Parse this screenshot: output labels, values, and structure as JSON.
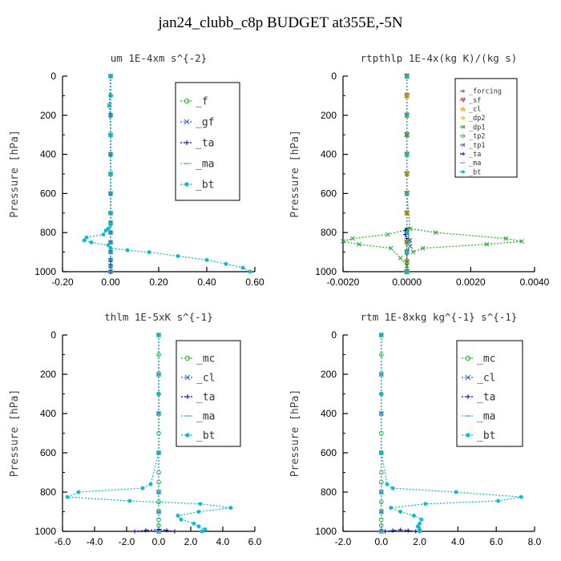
{
  "figure": {
    "title": "jan24_clubb_c8p  BUDGET at355E,-5N"
  },
  "chart_data": [
    {
      "type": "line",
      "title": "um   1E-4xm s^{-2}",
      "ylabel": "Pressure [hPa]",
      "xlim": [
        -0.2,
        0.6
      ],
      "ylim": [
        1000,
        0
      ],
      "xticks": [
        "-0.20",
        "0.00",
        "0.20",
        "0.40",
        "0.60"
      ],
      "yticks": [
        "0",
        "200",
        "400",
        "600",
        "800",
        "1000"
      ],
      "legend_position": "top-right",
      "series": [
        {
          "name": "_f",
          "color": "#22bb22",
          "marker": "circle",
          "x": [
            0,
            0,
            0,
            0,
            0,
            0,
            0,
            0,
            0,
            0,
            0,
            0,
            0,
            0,
            0
          ],
          "y": [
            0,
            100,
            200,
            300,
            400,
            500,
            600,
            700,
            750,
            800,
            850,
            900,
            940,
            970,
            1000
          ]
        },
        {
          "name": "_gf",
          "color": "#2266cc",
          "marker": "cross",
          "x": [
            0,
            -0.005,
            0,
            0,
            0,
            0,
            0,
            0,
            0,
            0,
            0,
            0,
            0,
            0,
            0
          ],
          "y": [
            0,
            150,
            200,
            300,
            400,
            500,
            600,
            700,
            750,
            800,
            850,
            900,
            940,
            970,
            1000
          ]
        },
        {
          "name": "_ta",
          "color": "#0000cc",
          "marker": "plus",
          "x": [
            0,
            0,
            0,
            0,
            0,
            0,
            0,
            0,
            0,
            0,
            0,
            0,
            0,
            0,
            0
          ],
          "y": [
            0,
            100,
            200,
            300,
            400,
            500,
            600,
            700,
            750,
            800,
            850,
            900,
            940,
            970,
            1000
          ]
        },
        {
          "name": "_ma",
          "color": "#44aadd",
          "marker": "dash",
          "x": [
            0,
            0,
            0,
            0,
            0,
            0,
            0,
            0,
            0,
            0,
            0,
            0,
            0,
            0,
            0
          ],
          "y": [
            0,
            100,
            200,
            300,
            400,
            500,
            600,
            700,
            750,
            800,
            850,
            900,
            940,
            970,
            1000
          ]
        },
        {
          "name": "_bt",
          "color": "#00bbcc",
          "marker": "star",
          "x": [
            0,
            0,
            -0.005,
            0,
            0,
            0,
            0,
            -0.01,
            -0.02,
            -0.03,
            -0.1,
            -0.11,
            -0.08,
            -0.01,
            0,
            0.07,
            0.16,
            0.28,
            0.4,
            0.48,
            0.55,
            0.58
          ],
          "y": [
            0,
            100,
            150,
            300,
            500,
            700,
            760,
            780,
            790,
            810,
            825,
            840,
            850,
            865,
            880,
            890,
            900,
            920,
            940,
            960,
            980,
            1000
          ]
        }
      ]
    },
    {
      "type": "line",
      "title": "rtpthlp   1E-4x(kg K)/(kg s)",
      "ylabel": "Pressure [hPa]",
      "xlim": [
        -0.002,
        0.004
      ],
      "ylim": [
        1000,
        0
      ],
      "xticks": [
        "-0.0020",
        "0.0000",
        "0.0020",
        "0.0040"
      ],
      "yticks": [
        "0",
        "200",
        "400",
        "600",
        "800",
        "1000"
      ],
      "legend_position": "top-right",
      "series": [
        {
          "name": "_forcing",
          "color": "#dd2222",
          "marker": "plus",
          "x": [
            0,
            0,
            0,
            0,
            0,
            0,
            0,
            0,
            0,
            0,
            0,
            0,
            0
          ],
          "y": [
            0,
            100,
            200,
            300,
            400,
            500,
            600,
            700,
            800,
            850,
            900,
            950,
            1000
          ]
        },
        {
          "name": "_sf",
          "color": "#cc2222",
          "marker": "triangle-down",
          "x": [
            0,
            0,
            0,
            0,
            0,
            0,
            0,
            0,
            0,
            0,
            0,
            0,
            0
          ],
          "y": [
            0,
            100,
            200,
            300,
            400,
            500,
            600,
            700,
            800,
            850,
            900,
            950,
            1000
          ]
        },
        {
          "name": "_cl",
          "color": "#ee9900",
          "marker": "triangle-up",
          "x": [
            0,
            0,
            0,
            0,
            0,
            0,
            0,
            0,
            0,
            0,
            0,
            0,
            0
          ],
          "y": [
            0,
            100,
            200,
            300,
            400,
            500,
            600,
            700,
            800,
            850,
            900,
            950,
            1000
          ]
        },
        {
          "name": "_dp2",
          "color": "#ddcc00",
          "marker": "diamond",
          "x": [
            0,
            0,
            0,
            0,
            0,
            0,
            0,
            0,
            0,
            0,
            0,
            0,
            0
          ],
          "y": [
            0,
            100,
            200,
            300,
            400,
            500,
            600,
            700,
            800,
            850,
            900,
            950,
            1000
          ]
        },
        {
          "name": "_dp1",
          "color": "#22aa22",
          "marker": "cross",
          "x": [
            0,
            0,
            0,
            0.0001,
            0.0009,
            0.0031,
            0.0036,
            0.0025,
            0.0005,
            0.0002,
            0,
            -0.0006,
            -0.0017,
            -0.002,
            -0.0015,
            -0.0005,
            -0.0002,
            0,
            0
          ],
          "y": [
            0,
            300,
            600,
            780,
            800,
            830,
            845,
            860,
            880,
            900,
            785,
            810,
            830,
            845,
            860,
            880,
            930,
            970,
            1000
          ]
        },
        {
          "name": "_tp2",
          "color": "#44bb44",
          "marker": "circle",
          "x": [
            0,
            0,
            0,
            0,
            0,
            0,
            0,
            0,
            0,
            0,
            0,
            0,
            0
          ],
          "y": [
            0,
            100,
            200,
            300,
            400,
            500,
            600,
            700,
            800,
            850,
            900,
            950,
            1000
          ]
        },
        {
          "name": "_tp1",
          "color": "#2266cc",
          "marker": "cross",
          "x": [
            0,
            0,
            0,
            0.0001,
            0.0001,
            0,
            0
          ],
          "y": [
            0,
            300,
            800,
            840,
            870,
            900,
            1000
          ]
        },
        {
          "name": "_ta",
          "color": "#0000cc",
          "marker": "plus",
          "x": [
            0,
            0,
            -5e-05,
            -5e-05,
            0,
            0
          ],
          "y": [
            0,
            780,
            790,
            810,
            830,
            1000
          ]
        },
        {
          "name": "_ma",
          "color": "#44aadd",
          "marker": "dash",
          "x": [
            0,
            0,
            0,
            0,
            0,
            0,
            0
          ],
          "y": [
            0,
            200,
            400,
            600,
            800,
            900,
            1000
          ]
        },
        {
          "name": "_bt",
          "color": "#00bbcc",
          "marker": "star",
          "x": [
            0,
            0,
            0,
            0,
            0,
            0,
            0
          ],
          "y": [
            0,
            200,
            400,
            600,
            800,
            900,
            1000
          ]
        }
      ]
    },
    {
      "type": "line",
      "title": "thlm   1E-5xK  s^{-1}",
      "ylabel": "Pressure [hPa]",
      "xlim": [
        -6.0,
        6.0
      ],
      "ylim": [
        1000,
        0
      ],
      "xticks": [
        "-6.0",
        "-4.0",
        "-2.0",
        "0.0",
        "2.0",
        "4.0",
        "6.0"
      ],
      "yticks": [
        "0",
        "200",
        "400",
        "600",
        "800",
        "1000"
      ],
      "legend_position": "top-right",
      "series": [
        {
          "name": "_mc",
          "color": "#22bb22",
          "marker": "circle",
          "x": [
            0,
            0,
            0,
            0,
            0,
            0,
            0,
            0,
            0,
            0,
            0,
            0,
            0,
            0,
            0
          ],
          "y": [
            0,
            100,
            200,
            300,
            400,
            500,
            600,
            700,
            750,
            800,
            850,
            900,
            940,
            970,
            1000
          ]
        },
        {
          "name": "_cl",
          "color": "#2266cc",
          "marker": "cross",
          "x": [
            0,
            0,
            0,
            0,
            0,
            0,
            0
          ],
          "y": [
            0,
            200,
            400,
            600,
            800,
            900,
            1000
          ]
        },
        {
          "name": "_ta",
          "color": "#0000cc",
          "marker": "plus",
          "x": [
            -1.5,
            -0.8,
            0,
            0.5,
            1.0
          ],
          "y": [
            1000,
            995,
            990,
            995,
            1000
          ]
        },
        {
          "name": "_ma",
          "color": "#44aadd",
          "marker": "dash",
          "x": [
            0,
            0,
            0,
            0,
            0,
            0,
            0
          ],
          "y": [
            0,
            200,
            400,
            600,
            800,
            900,
            1000
          ]
        },
        {
          "name": "_bt",
          "color": "#00bbcc",
          "marker": "star",
          "x": [
            0,
            0,
            0,
            -0.5,
            -1.0,
            -5.0,
            -5.7,
            -1.8,
            2.6,
            4.5,
            2.5,
            1.2,
            1.4,
            2.2,
            2.5,
            2.9,
            2.7
          ],
          "y": [
            0,
            300,
            600,
            760,
            780,
            800,
            825,
            845,
            860,
            880,
            900,
            920,
            940,
            960,
            975,
            990,
            1000
          ]
        }
      ]
    },
    {
      "type": "line",
      "title": "rtm   1E-8xkg kg^{-1} s^{-1}",
      "ylabel": "Pressure [hPa]",
      "xlim": [
        -2.0,
        8.0
      ],
      "ylim": [
        1000,
        0
      ],
      "xticks": [
        "-2.0",
        "0.0",
        "2.0",
        "4.0",
        "6.0",
        "8.0"
      ],
      "yticks": [
        "0",
        "200",
        "400",
        "600",
        "800",
        "1000"
      ],
      "legend_position": "top-right",
      "series": [
        {
          "name": "_mc",
          "color": "#22bb22",
          "marker": "circle",
          "x": [
            0,
            0,
            0,
            0,
            0,
            0,
            0,
            0,
            0,
            0,
            0,
            0,
            0,
            0,
            0
          ],
          "y": [
            0,
            100,
            200,
            300,
            400,
            500,
            600,
            700,
            750,
            800,
            850,
            900,
            940,
            970,
            1000
          ]
        },
        {
          "name": "_cl",
          "color": "#2266cc",
          "marker": "cross",
          "x": [
            0,
            0,
            0,
            0,
            0,
            0,
            0
          ],
          "y": [
            0,
            200,
            400,
            600,
            800,
            900,
            1000
          ]
        },
        {
          "name": "_ta",
          "color": "#0000cc",
          "marker": "plus",
          "x": [
            0.2,
            0.6,
            1.0,
            1.4,
            1.8
          ],
          "y": [
            1000,
            996,
            992,
            996,
            1000
          ]
        },
        {
          "name": "_ma",
          "color": "#44aadd",
          "marker": "dash",
          "x": [
            0,
            0,
            0,
            0,
            0,
            0,
            0
          ],
          "y": [
            0,
            200,
            400,
            600,
            800,
            900,
            1000
          ]
        },
        {
          "name": "_bt",
          "color": "#00bbcc",
          "marker": "star",
          "x": [
            0,
            0,
            0,
            0.3,
            0.6,
            3.9,
            7.3,
            6.1,
            2.3,
            0.5,
            1.0,
            1.7,
            2.1,
            2.0,
            1.9,
            2.0,
            2.0
          ],
          "y": [
            0,
            300,
            600,
            760,
            780,
            800,
            825,
            845,
            860,
            880,
            900,
            920,
            940,
            960,
            975,
            990,
            1000
          ]
        }
      ]
    }
  ]
}
